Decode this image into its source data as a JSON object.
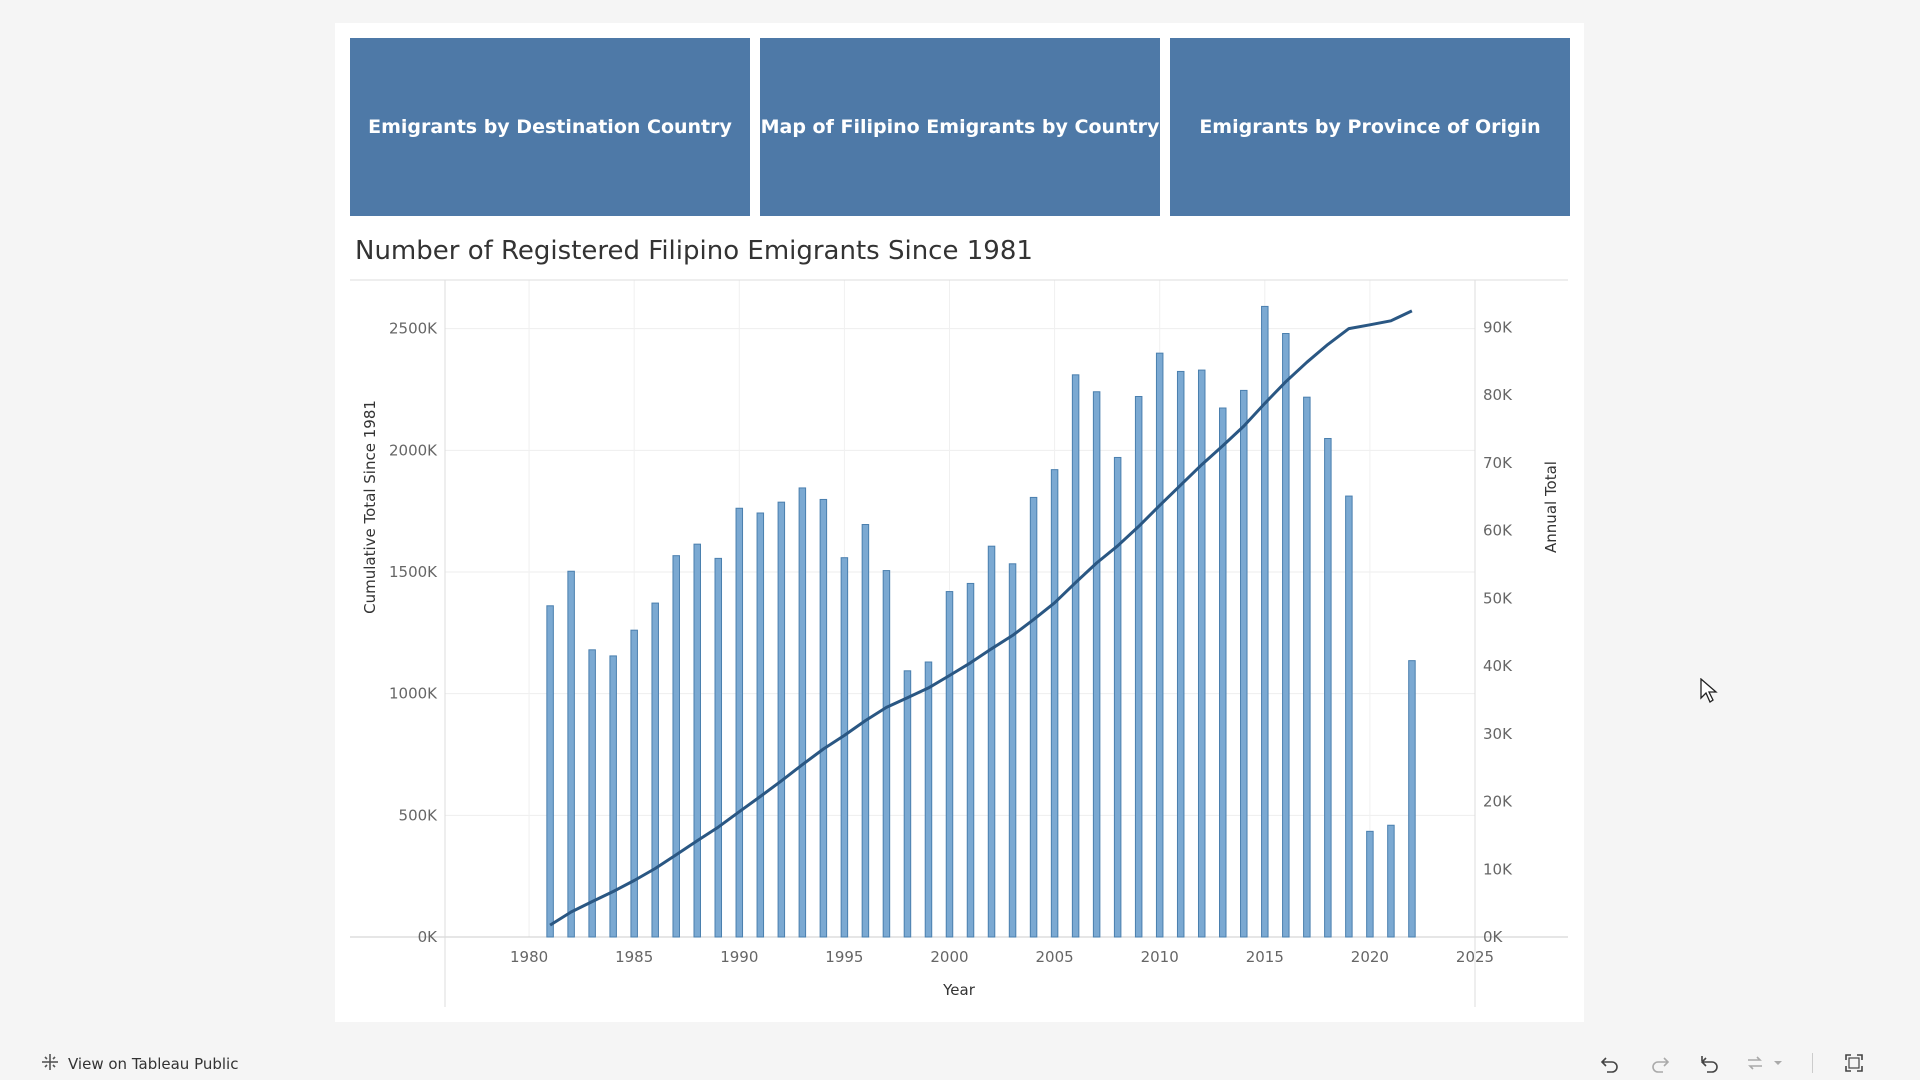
{
  "nav": {
    "buttons": [
      {
        "label": "Emigrants by Destination Country"
      },
      {
        "label": "Map of Filipino Emigrants by Country"
      },
      {
        "label": "Emigrants by Province of Origin"
      }
    ]
  },
  "footer": {
    "view_label": "View on Tableau Public"
  },
  "colors": {
    "nav_bg": "#4e79a7",
    "bar_fill": "#7ba9d2",
    "bar_stroke": "#4a7fae",
    "line": "#2a5783"
  },
  "chart_data": {
    "type": "bar",
    "title": "Number of Registered Filipino Emigrants Since 1981",
    "xlabel": "Year",
    "ylabel_left": "Cumulative Total Since 1981",
    "ylabel_right": "Annual Total",
    "xlim": [
      1976,
      2025
    ],
    "x_ticks": [
      "1980",
      "1985",
      "1990",
      "1995",
      "2000",
      "2005",
      "2010",
      "2015",
      "2020",
      "2025"
    ],
    "ylim_left": [
      0,
      2700000
    ],
    "ylim_right": [
      0,
      97000
    ],
    "left_ticks": [
      "0K",
      "500K",
      "1000K",
      "1500K",
      "2000K",
      "2500K"
    ],
    "right_ticks": [
      "0K",
      "10K",
      "20K",
      "30K",
      "40K",
      "50K",
      "60K",
      "70K",
      "80K",
      "90K"
    ],
    "grid": true,
    "series": [
      {
        "name": "Annual Total",
        "kind": "bar",
        "axis": "right",
        "x": [
          1981,
          1982,
          1983,
          1984,
          1985,
          1986,
          1987,
          1988,
          1989,
          1990,
          1991,
          1992,
          1993,
          1994,
          1995,
          1996,
          1997,
          1998,
          1999,
          2000,
          2001,
          2002,
          2003,
          2004,
          2005,
          2006,
          2007,
          2008,
          2009,
          2010,
          2011,
          2012,
          2013,
          2014,
          2015,
          2016,
          2017,
          2018,
          2019,
          2020,
          2021,
          2022
        ],
        "values": [
          48900,
          54000,
          42400,
          41500,
          45300,
          49300,
          56300,
          58000,
          55900,
          63300,
          62600,
          64200,
          66300,
          64600,
          56000,
          60900,
          54100,
          39300,
          40600,
          51000,
          52200,
          57700,
          55100,
          64900,
          69000,
          83000,
          80500,
          70800,
          79800,
          86200,
          83500,
          83700,
          78100,
          80700,
          93100,
          89100,
          79700,
          73600,
          65100,
          15600,
          16500,
          40800
        ]
      },
      {
        "name": "Cumulative Total Since 1981",
        "kind": "line",
        "axis": "left",
        "x": [
          1981,
          1982,
          1983,
          1984,
          1985,
          1986,
          1987,
          1988,
          1989,
          1990,
          1991,
          1992,
          1993,
          1994,
          1995,
          1996,
          1997,
          1998,
          1999,
          2000,
          2001,
          2002,
          2003,
          2004,
          2005,
          2006,
          2007,
          2008,
          2009,
          2010,
          2011,
          2012,
          2013,
          2014,
          2015,
          2016,
          2017,
          2018,
          2019,
          2020,
          2021,
          2022
        ],
        "values": [
          48900,
          102900,
          145300,
          186800,
          232100,
          281400,
          337700,
          395700,
          451600,
          514900,
          577500,
          641700,
          708000,
          772600,
          828600,
          889500,
          943600,
          982900,
          1023500,
          1074500,
          1126700,
          1184400,
          1239500,
          1304400,
          1373400,
          1456400,
          1536900,
          1607700,
          1687500,
          1773700,
          1857200,
          1940900,
          2019000,
          2099700,
          2192800,
          2281900,
          2361600,
          2435200,
          2500300,
          2515900,
          2532400,
          2573200
        ]
      }
    ]
  }
}
